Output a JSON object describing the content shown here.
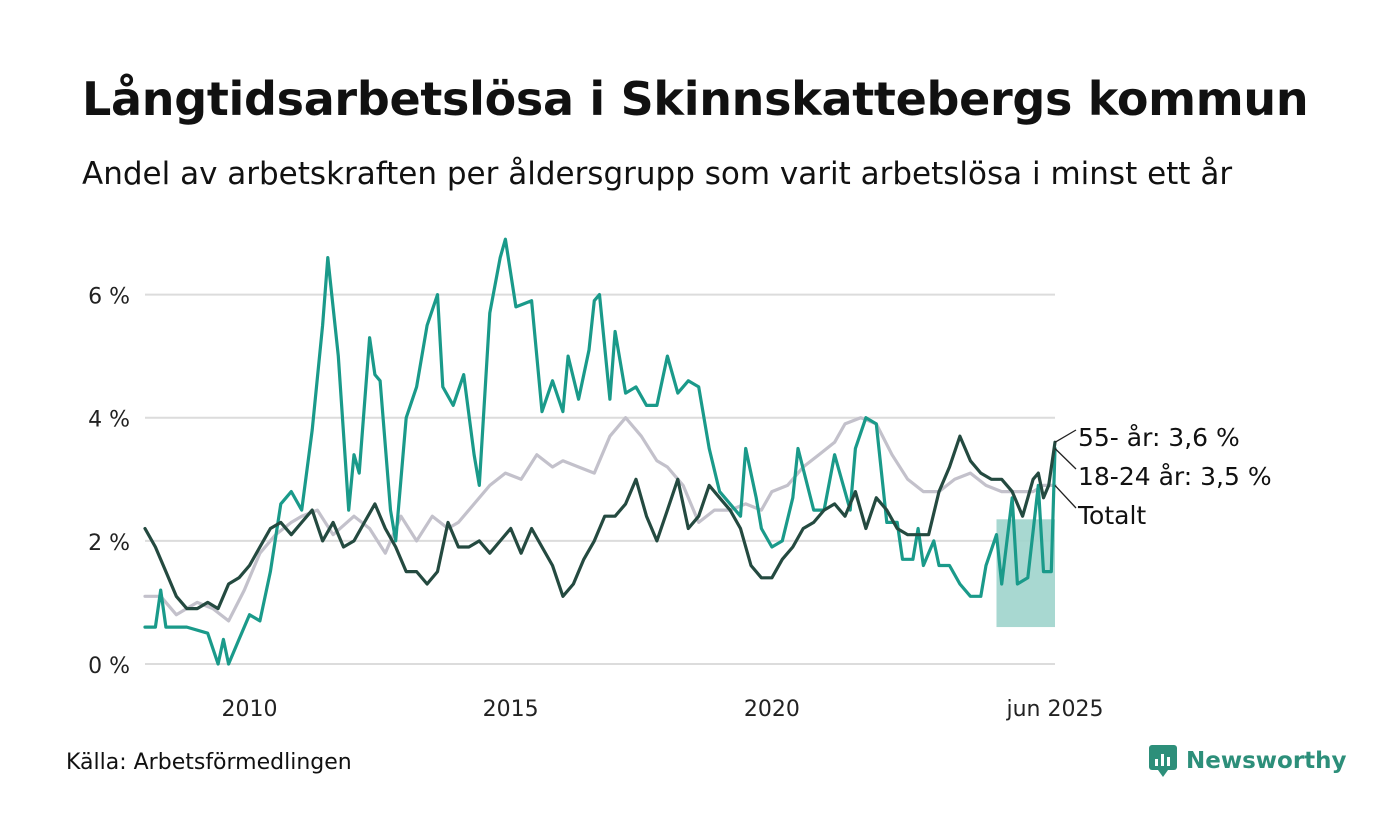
{
  "header": {
    "title": "Långtidsarbetslösa i Skinnskattebergs kommun",
    "subtitle": "Andel av arbetskraften per åldersgrupp som varit arbetslösa i minst ett år"
  },
  "footer": {
    "source": "Källa: Arbetsförmedlingen",
    "brand": "Newsworthy"
  },
  "chart_data": {
    "type": "line",
    "x_range": [
      2008.0,
      2025.42
    ],
    "ylim": [
      0,
      7
    ],
    "y_ticks": [
      0,
      2,
      4,
      6
    ],
    "y_tick_labels": [
      "0 %",
      "2 %",
      "4 %",
      "6 %"
    ],
    "x_ticks": [
      2010,
      2015,
      2020,
      2025.42
    ],
    "x_tick_labels": [
      "2010",
      "2015",
      "2020",
      "jun 2025"
    ],
    "grid": true,
    "legend": "end-of-line labels (right)",
    "series": [
      {
        "name": "Totalt",
        "color": "#c3c1cb",
        "points": [
          [
            2008.0,
            1.1
          ],
          [
            2008.3,
            1.1
          ],
          [
            2008.6,
            0.8
          ],
          [
            2009.0,
            1.0
          ],
          [
            2009.3,
            0.9
          ],
          [
            2009.6,
            0.7
          ],
          [
            2009.9,
            1.2
          ],
          [
            2010.2,
            1.8
          ],
          [
            2010.5,
            2.1
          ],
          [
            2010.8,
            2.3
          ],
          [
            2011.0,
            2.4
          ],
          [
            2011.3,
            2.5
          ],
          [
            2011.6,
            2.1
          ],
          [
            2012.0,
            2.4
          ],
          [
            2012.3,
            2.2
          ],
          [
            2012.6,
            1.8
          ],
          [
            2012.9,
            2.4
          ],
          [
            2013.2,
            2.0
          ],
          [
            2013.5,
            2.4
          ],
          [
            2013.8,
            2.2
          ],
          [
            2014.0,
            2.3
          ],
          [
            2014.3,
            2.6
          ],
          [
            2014.6,
            2.9
          ],
          [
            2014.9,
            3.1
          ],
          [
            2015.2,
            3.0
          ],
          [
            2015.5,
            3.4
          ],
          [
            2015.8,
            3.2
          ],
          [
            2016.0,
            3.3
          ],
          [
            2016.3,
            3.2
          ],
          [
            2016.6,
            3.1
          ],
          [
            2016.9,
            3.7
          ],
          [
            2017.2,
            4.0
          ],
          [
            2017.5,
            3.7
          ],
          [
            2017.8,
            3.3
          ],
          [
            2018.0,
            3.2
          ],
          [
            2018.3,
            2.9
          ],
          [
            2018.6,
            2.3
          ],
          [
            2018.9,
            2.5
          ],
          [
            2019.2,
            2.5
          ],
          [
            2019.5,
            2.6
          ],
          [
            2019.8,
            2.5
          ],
          [
            2020.0,
            2.8
          ],
          [
            2020.3,
            2.9
          ],
          [
            2020.6,
            3.2
          ],
          [
            2020.9,
            3.4
          ],
          [
            2021.2,
            3.6
          ],
          [
            2021.4,
            3.9
          ],
          [
            2021.7,
            4.0
          ],
          [
            2022.0,
            3.9
          ],
          [
            2022.3,
            3.4
          ],
          [
            2022.6,
            3.0
          ],
          [
            2022.9,
            2.8
          ],
          [
            2023.2,
            2.8
          ],
          [
            2023.5,
            3.0
          ],
          [
            2023.8,
            3.1
          ],
          [
            2024.1,
            2.9
          ],
          [
            2024.4,
            2.8
          ],
          [
            2024.7,
            2.8
          ],
          [
            2025.0,
            2.8
          ],
          [
            2025.2,
            2.9
          ],
          [
            2025.42,
            2.9
          ]
        ]
      },
      {
        "name": "18-24 år",
        "color": "#1a9a8a",
        "points": [
          [
            2008.0,
            0.6
          ],
          [
            2008.2,
            0.6
          ],
          [
            2008.3,
            1.2
          ],
          [
            2008.4,
            0.6
          ],
          [
            2008.8,
            0.6
          ],
          [
            2009.2,
            0.5
          ],
          [
            2009.4,
            0.0
          ],
          [
            2009.5,
            0.4
          ],
          [
            2009.6,
            0.0
          ],
          [
            2009.8,
            0.4
          ],
          [
            2010.0,
            0.8
          ],
          [
            2010.2,
            0.7
          ],
          [
            2010.4,
            1.5
          ],
          [
            2010.6,
            2.6
          ],
          [
            2010.8,
            2.8
          ],
          [
            2011.0,
            2.5
          ],
          [
            2011.2,
            3.8
          ],
          [
            2011.4,
            5.5
          ],
          [
            2011.5,
            6.6
          ],
          [
            2011.7,
            5.0
          ],
          [
            2011.9,
            2.5
          ],
          [
            2012.0,
            3.4
          ],
          [
            2012.1,
            3.1
          ],
          [
            2012.3,
            5.3
          ],
          [
            2012.4,
            4.7
          ],
          [
            2012.5,
            4.6
          ],
          [
            2012.7,
            2.5
          ],
          [
            2012.8,
            2.0
          ],
          [
            2013.0,
            4.0
          ],
          [
            2013.2,
            4.5
          ],
          [
            2013.4,
            5.5
          ],
          [
            2013.6,
            6.0
          ],
          [
            2013.7,
            4.5
          ],
          [
            2013.9,
            4.2
          ],
          [
            2014.1,
            4.7
          ],
          [
            2014.3,
            3.4
          ],
          [
            2014.4,
            2.9
          ],
          [
            2014.6,
            5.7
          ],
          [
            2014.8,
            6.6
          ],
          [
            2014.9,
            6.9
          ],
          [
            2015.1,
            5.8
          ],
          [
            2015.4,
            5.9
          ],
          [
            2015.6,
            4.1
          ],
          [
            2015.8,
            4.6
          ],
          [
            2016.0,
            4.1
          ],
          [
            2016.1,
            5.0
          ],
          [
            2016.3,
            4.3
          ],
          [
            2016.5,
            5.1
          ],
          [
            2016.6,
            5.9
          ],
          [
            2016.7,
            6.0
          ],
          [
            2016.9,
            4.3
          ],
          [
            2017.0,
            5.4
          ],
          [
            2017.2,
            4.4
          ],
          [
            2017.4,
            4.5
          ],
          [
            2017.6,
            4.2
          ],
          [
            2017.8,
            4.2
          ],
          [
            2018.0,
            5.0
          ],
          [
            2018.2,
            4.4
          ],
          [
            2018.4,
            4.6
          ],
          [
            2018.6,
            4.5
          ],
          [
            2018.8,
            3.5
          ],
          [
            2019.0,
            2.8
          ],
          [
            2019.2,
            2.6
          ],
          [
            2019.4,
            2.4
          ],
          [
            2019.5,
            3.5
          ],
          [
            2019.7,
            2.7
          ],
          [
            2019.8,
            2.2
          ],
          [
            2020.0,
            1.9
          ],
          [
            2020.2,
            2.0
          ],
          [
            2020.4,
            2.7
          ],
          [
            2020.5,
            3.5
          ],
          [
            2020.8,
            2.5
          ],
          [
            2021.0,
            2.5
          ],
          [
            2021.2,
            3.4
          ],
          [
            2021.4,
            2.8
          ],
          [
            2021.5,
            2.5
          ],
          [
            2021.6,
            3.5
          ],
          [
            2021.8,
            4.0
          ],
          [
            2022.0,
            3.9
          ],
          [
            2022.2,
            2.3
          ],
          [
            2022.4,
            2.3
          ],
          [
            2022.5,
            1.7
          ],
          [
            2022.7,
            1.7
          ],
          [
            2022.8,
            2.2
          ],
          [
            2022.9,
            1.6
          ],
          [
            2023.1,
            2.0
          ],
          [
            2023.2,
            1.6
          ],
          [
            2023.4,
            1.6
          ],
          [
            2023.6,
            1.3
          ],
          [
            2023.8,
            1.1
          ],
          [
            2024.0,
            1.1
          ],
          [
            2024.1,
            1.6
          ],
          [
            2024.3,
            2.1
          ],
          [
            2024.4,
            1.3
          ],
          [
            2024.6,
            2.7
          ],
          [
            2024.7,
            1.3
          ],
          [
            2024.9,
            1.4
          ],
          [
            2025.1,
            2.9
          ],
          [
            2025.2,
            1.5
          ],
          [
            2025.35,
            1.5
          ],
          [
            2025.42,
            3.5
          ]
        ]
      },
      {
        "name": "55- år",
        "color": "#244a40",
        "points": [
          [
            2008.0,
            2.2
          ],
          [
            2008.2,
            1.9
          ],
          [
            2008.4,
            1.5
          ],
          [
            2008.6,
            1.1
          ],
          [
            2008.8,
            0.9
          ],
          [
            2009.0,
            0.9
          ],
          [
            2009.2,
            1.0
          ],
          [
            2009.4,
            0.9
          ],
          [
            2009.6,
            1.3
          ],
          [
            2009.8,
            1.4
          ],
          [
            2010.0,
            1.6
          ],
          [
            2010.2,
            1.9
          ],
          [
            2010.4,
            2.2
          ],
          [
            2010.6,
            2.3
          ],
          [
            2010.8,
            2.1
          ],
          [
            2011.0,
            2.3
          ],
          [
            2011.2,
            2.5
          ],
          [
            2011.4,
            2.0
          ],
          [
            2011.6,
            2.3
          ],
          [
            2011.8,
            1.9
          ],
          [
            2012.0,
            2.0
          ],
          [
            2012.2,
            2.3
          ],
          [
            2012.4,
            2.6
          ],
          [
            2012.6,
            2.2
          ],
          [
            2012.8,
            1.9
          ],
          [
            2013.0,
            1.5
          ],
          [
            2013.2,
            1.5
          ],
          [
            2013.4,
            1.3
          ],
          [
            2013.6,
            1.5
          ],
          [
            2013.8,
            2.3
          ],
          [
            2014.0,
            1.9
          ],
          [
            2014.2,
            1.9
          ],
          [
            2014.4,
            2.0
          ],
          [
            2014.6,
            1.8
          ],
          [
            2014.8,
            2.0
          ],
          [
            2015.0,
            2.2
          ],
          [
            2015.2,
            1.8
          ],
          [
            2015.4,
            2.2
          ],
          [
            2015.6,
            1.9
          ],
          [
            2015.8,
            1.6
          ],
          [
            2016.0,
            1.1
          ],
          [
            2016.2,
            1.3
          ],
          [
            2016.4,
            1.7
          ],
          [
            2016.6,
            2.0
          ],
          [
            2016.8,
            2.4
          ],
          [
            2017.0,
            2.4
          ],
          [
            2017.2,
            2.6
          ],
          [
            2017.4,
            3.0
          ],
          [
            2017.6,
            2.4
          ],
          [
            2017.8,
            2.0
          ],
          [
            2018.0,
            2.5
          ],
          [
            2018.2,
            3.0
          ],
          [
            2018.4,
            2.2
          ],
          [
            2018.6,
            2.4
          ],
          [
            2018.8,
            2.9
          ],
          [
            2019.0,
            2.7
          ],
          [
            2019.2,
            2.5
          ],
          [
            2019.4,
            2.2
          ],
          [
            2019.6,
            1.6
          ],
          [
            2019.8,
            1.4
          ],
          [
            2020.0,
            1.4
          ],
          [
            2020.2,
            1.7
          ],
          [
            2020.4,
            1.9
          ],
          [
            2020.6,
            2.2
          ],
          [
            2020.8,
            2.3
          ],
          [
            2021.0,
            2.5
          ],
          [
            2021.2,
            2.6
          ],
          [
            2021.4,
            2.4
          ],
          [
            2021.6,
            2.8
          ],
          [
            2021.8,
            2.2
          ],
          [
            2022.0,
            2.7
          ],
          [
            2022.2,
            2.5
          ],
          [
            2022.4,
            2.2
          ],
          [
            2022.6,
            2.1
          ],
          [
            2022.8,
            2.1
          ],
          [
            2023.0,
            2.1
          ],
          [
            2023.2,
            2.8
          ],
          [
            2023.4,
            3.2
          ],
          [
            2023.6,
            3.7
          ],
          [
            2023.8,
            3.3
          ],
          [
            2024.0,
            3.1
          ],
          [
            2024.2,
            3.0
          ],
          [
            2024.4,
            3.0
          ],
          [
            2024.6,
            2.8
          ],
          [
            2024.8,
            2.4
          ],
          [
            2025.0,
            3.0
          ],
          [
            2025.1,
            3.1
          ],
          [
            2025.2,
            2.7
          ],
          [
            2025.3,
            2.9
          ],
          [
            2025.42,
            3.6
          ]
        ]
      }
    ],
    "band": {
      "series": "18-24 år",
      "lower": 0.6,
      "upper": 2.35,
      "x_from": 2024.3,
      "x_to": 2025.42,
      "color": "#9ed4cc"
    },
    "end_labels": [
      "55- år: 3,6 %",
      "18-24 år: 3,5 %",
      "Totalt"
    ]
  }
}
